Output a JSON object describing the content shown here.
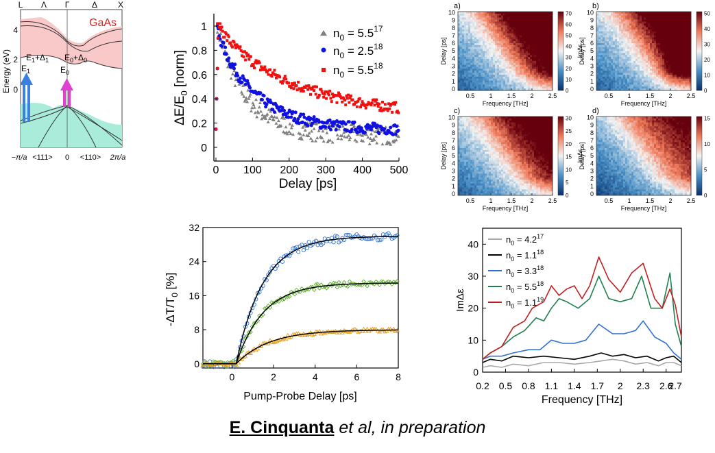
{
  "caption": {
    "author": "E. Cinquanta",
    "rest": "et al, in preparation"
  },
  "chart_data": [
    {
      "id": "band",
      "type": "diagram",
      "title": "GaAs",
      "ylabel": "Energy (eV)",
      "yticks": [
        "4",
        "2",
        "0"
      ],
      "top_labels": [
        "L",
        "Λ",
        "Γ",
        "Δ",
        "X"
      ],
      "xticks": [
        "−π/a",
        "<111>",
        "0",
        "<110>",
        "2π/a"
      ],
      "labels": {
        "e1": "E",
        "e1s": "1",
        "e1d": "E",
        "e1ds": "1",
        "e1dd": "+Δ",
        "e1dds": "1",
        "e0": "E",
        "e0s": "0",
        "e0d": "E",
        "e0ds": "0",
        "e0dd": "+Δ",
        "e0dds": "0"
      },
      "colors": {
        "conduction": "#f9c9c9",
        "valence": "#a9ecd9",
        "title": "#e02020",
        "arrow_e1": "#3b7fe0",
        "arrow_e0": "#e040d0"
      }
    },
    {
      "id": "decay",
      "type": "scatter",
      "xlabel": "Delay [ps]",
      "ylabel": "ΔE/E",
      "ylabel_sub": "0",
      "ylabel_tail": " [norm]",
      "xlim": [
        0,
        500
      ],
      "ylim": [
        0,
        1.05
      ],
      "xticks": [
        0,
        100,
        200,
        300,
        400,
        500
      ],
      "yticks": [
        0,
        0.2,
        0.4,
        0.6,
        0.8,
        1
      ],
      "legend_loc": "top-right",
      "series": [
        {
          "name": "n",
          "sub": "0",
          "eq": " = 5.5",
          "sup": "17",
          "color": "#808080",
          "marker": "triangle",
          "amp": 0.9,
          "tau": 80,
          "offset": 0.1
        },
        {
          "name": "n",
          "sub": "0",
          "eq": " = 2.5",
          "sup": "18",
          "color": "#1010e0",
          "marker": "circle",
          "amp": 0.8,
          "tau": 110,
          "offset": 0.14
        },
        {
          "name": "n",
          "sub": "0",
          "eq": " = 5.5",
          "sup": "18",
          "color": "#f01010",
          "marker": "square",
          "amp": 0.72,
          "tau": 210,
          "offset": 0.26
        }
      ]
    },
    {
      "id": "maps",
      "type": "heatmap",
      "xlabel": "Frequency [THz]",
      "ylabel": "Delay [ps]",
      "cblabel": "ImΔε",
      "xticks": [
        "0.5",
        "1",
        "1.5",
        "2",
        "2.5"
      ],
      "yticks": [
        "0",
        "1",
        "2",
        "3",
        "4",
        "5",
        "6",
        "7",
        "8",
        "9",
        "10"
      ],
      "panels": [
        {
          "label": "a)",
          "cbticks": [
            "0",
            "10",
            "20",
            "30",
            "40",
            "50",
            "60",
            "70"
          ]
        },
        {
          "label": "b)",
          "cbticks": [
            "0",
            "10",
            "20",
            "30",
            "40",
            "50"
          ]
        },
        {
          "label": "c)",
          "cbticks": [
            "0",
            "5",
            "10",
            "15",
            "20",
            "25",
            "30"
          ]
        },
        {
          "label": "d)",
          "cbticks": [
            "0",
            "5",
            "10",
            "15"
          ]
        }
      ]
    },
    {
      "id": "transmission",
      "type": "scatter",
      "xlabel": "Pump-Probe Delay  [ps]",
      "ylabel": "-ΔT/T",
      "ylabel_sub": "0",
      "ylabel_tail": "  [%]",
      "xlim": [
        -1.4,
        8
      ],
      "ylim": [
        -1,
        32
      ],
      "xticks": [
        0,
        2,
        4,
        6,
        8
      ],
      "yticks": [
        0,
        8,
        16,
        24,
        32
      ],
      "series": [
        {
          "color": "#3070d0",
          "marker": "circle",
          "amp": 30,
          "tau": 1.3
        },
        {
          "color": "#60b030",
          "marker": "diamond",
          "amp": 19,
          "tau": 1.3
        },
        {
          "color": "#e8a020",
          "marker": "triangle",
          "amp": 8,
          "tau": 1.6
        }
      ]
    },
    {
      "id": "spectra",
      "type": "line",
      "xlabel": "Frequency [THz]",
      "ylabel": "ImΔε",
      "xlim": [
        0.2,
        2.8
      ],
      "ylim": [
        0,
        45
      ],
      "xticks": [
        "0.2",
        "0.5",
        "0.8",
        "1.1",
        "1.4",
        "1.7",
        "2",
        "2.3",
        "2.6"
      ],
      "xtick_vals": [
        0.2,
        0.5,
        0.8,
        1.1,
        1.4,
        1.7,
        2.0,
        2.3,
        2.6
      ],
      "extra_xtick": "2.7",
      "yticks": [
        0,
        10,
        20,
        30,
        40
      ],
      "legend_loc": "top-left",
      "series": [
        {
          "name": "n",
          "sub": "0",
          "eq": " = 4.2",
          "sup": "17",
          "color": "#a8a8a8",
          "x": [
            0.2,
            0.3,
            0.45,
            0.6,
            0.8,
            1.0,
            1.2,
            1.4,
            1.6,
            1.75,
            1.9,
            2.05,
            2.2,
            2.35,
            2.5,
            2.6,
            2.7,
            2.8
          ],
          "y": [
            1.5,
            2,
            1.5,
            2.5,
            2,
            3,
            3,
            2.5,
            3,
            3.5,
            4,
            3.5,
            2.5,
            3,
            2,
            3,
            3,
            2
          ]
        },
        {
          "name": "n",
          "sub": "0",
          "eq": " = 1.1",
          "sup": "18",
          "color": "#000000",
          "x": [
            0.2,
            0.3,
            0.45,
            0.6,
            0.8,
            1.0,
            1.2,
            1.4,
            1.6,
            1.75,
            1.9,
            2.05,
            2.2,
            2.35,
            2.5,
            2.6,
            2.7,
            2.8
          ],
          "y": [
            3,
            4,
            3.5,
            5,
            4.5,
            5,
            4.5,
            4,
            5,
            6,
            5,
            5.5,
            4.5,
            5,
            3.5,
            4.5,
            5,
            3
          ]
        },
        {
          "name": "n",
          "sub": "0",
          "eq": " = 3.3",
          "sup": "18",
          "color": "#3070d0",
          "x": [
            0.2,
            0.3,
            0.45,
            0.6,
            0.8,
            0.95,
            1.1,
            1.25,
            1.4,
            1.55,
            1.72,
            1.9,
            2.05,
            2.2,
            2.3,
            2.45,
            2.6,
            2.7,
            2.8
          ],
          "y": [
            4,
            5,
            5,
            6,
            7,
            7,
            10,
            9,
            9,
            10,
            15,
            12,
            12,
            13,
            16,
            11,
            9,
            6,
            4
          ]
        },
        {
          "name": "n",
          "sub": "0",
          "eq": " = 5.5",
          "sup": "18",
          "color": "#208050",
          "x": [
            0.2,
            0.3,
            0.45,
            0.6,
            0.75,
            0.9,
            1.0,
            1.1,
            1.2,
            1.3,
            1.45,
            1.6,
            1.72,
            1.85,
            2.0,
            2.15,
            2.28,
            2.4,
            2.55,
            2.65,
            2.72,
            2.8
          ],
          "y": [
            4,
            6,
            8,
            11,
            13,
            17,
            16,
            20,
            23,
            22,
            20,
            23,
            30,
            23,
            22,
            23,
            30,
            20,
            20,
            31,
            15,
            8
          ]
        },
        {
          "name": "n",
          "sub": "0",
          "eq": " = 1.1",
          "sup": "19",
          "color": "#c02020",
          "x": [
            0.2,
            0.3,
            0.45,
            0.6,
            0.75,
            0.85,
            1.0,
            1.1,
            1.2,
            1.3,
            1.4,
            1.5,
            1.6,
            1.72,
            1.85,
            2.0,
            2.15,
            2.3,
            2.45,
            2.55,
            2.65,
            2.72,
            2.8
          ],
          "y": [
            4,
            6,
            8,
            14,
            16,
            20,
            22,
            27,
            24,
            26,
            27,
            23,
            27,
            36,
            29,
            25,
            31,
            34,
            23,
            20,
            26,
            21,
            11
          ]
        }
      ]
    }
  ]
}
